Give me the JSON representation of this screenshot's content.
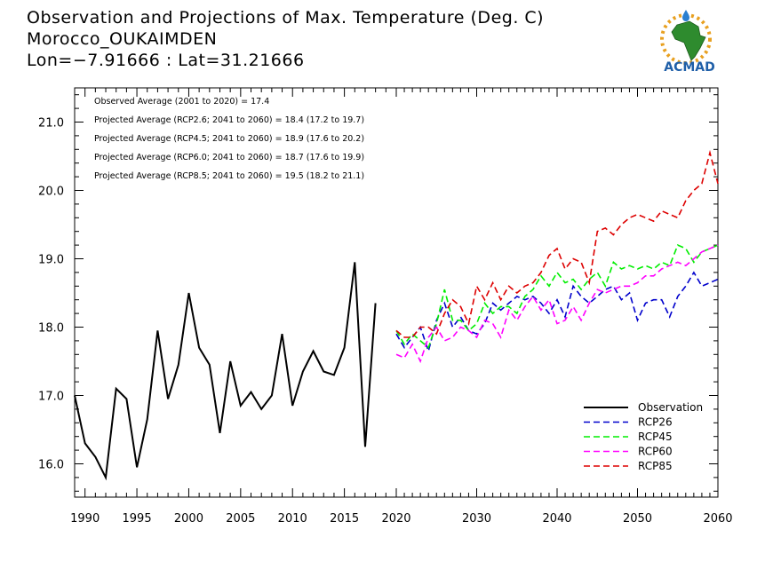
{
  "header": {
    "title_line1": "Observation and Projections of Max. Temperature (Deg. C)",
    "title_line2": "Morocco_OUKAIMDEN",
    "title_line3": "Lon=−7.91666 : Lat=31.21666"
  },
  "logo": {
    "text": "ACMAD",
    "icon": "acmad-africa-logo"
  },
  "chart_data": {
    "type": "line",
    "title": "Observation and Projections of Max. Temperature (Deg. C)",
    "xlim": [
      1989,
      2060
    ],
    "ylim": [
      15.5,
      21.5
    ],
    "x_ticks": [
      1990,
      1995,
      2000,
      2005,
      2010,
      2015,
      2020,
      2030,
      2040,
      2050,
      2060
    ],
    "y_ticks": [
      16.0,
      17.0,
      18.0,
      19.0,
      20.0,
      21.0
    ],
    "y_tick_labels": [
      "16.0",
      "17.0",
      "18.0",
      "19.0",
      "20.0",
      "21.0"
    ],
    "x_break_note": "x-axis has different spacing before and after 2020",
    "annotations": [
      "Observed Average (2001 to 2020) = 17.4",
      "Projected Average (RCP2.6; 2041 to 2060) = 18.4 (17.2 to 19.7)",
      "Projected Average (RCP4.5; 2041 to 2060) = 18.9 (17.6 to 20.2)",
      "Projected Average (RCP6.0; 2041 to 2060) = 18.7 (17.6 to 19.9)",
      "Projected Average (RCP8.5; 2041 to 2060) = 19.5 (18.2 to 21.1)"
    ],
    "legend_position": "bottom-right",
    "series": [
      {
        "name": "Observation",
        "color": "#000000",
        "dash": "solid",
        "x": [
          1989,
          1990,
          1991,
          1992,
          1993,
          1994,
          1995,
          1996,
          1997,
          1998,
          1999,
          2000,
          2001,
          2002,
          2003,
          2004,
          2005,
          2006,
          2007,
          2008,
          2009,
          2010,
          2011,
          2012,
          2013,
          2014,
          2015,
          2016,
          2017,
          2018,
          2019,
          2020
        ],
        "y": [
          17.0,
          16.3,
          16.1,
          15.8,
          17.1,
          16.95,
          15.95,
          16.65,
          17.95,
          16.95,
          17.45,
          18.5,
          17.7,
          17.45,
          16.45,
          17.5,
          16.85,
          17.05,
          16.8,
          17.0,
          17.9,
          16.85,
          17.35,
          17.65,
          17.35,
          17.3,
          17.7,
          18.95,
          16.25,
          18.35,
          null,
          null
        ]
      },
      {
        "name": "RCP26",
        "color": "#0000cc",
        "dash": "dashed",
        "x": [
          2020,
          2021,
          2022,
          2023,
          2024,
          2025,
          2026,
          2027,
          2028,
          2029,
          2030,
          2031,
          2032,
          2033,
          2034,
          2035,
          2036,
          2037,
          2038,
          2039,
          2040,
          2041,
          2042,
          2043,
          2044,
          2045,
          2046,
          2047,
          2048,
          2049,
          2050,
          2051,
          2052,
          2053,
          2054,
          2055,
          2056,
          2057,
          2058,
          2059,
          2060
        ],
        "y": [
          17.9,
          17.7,
          17.85,
          18.0,
          17.65,
          18.1,
          18.35,
          18.0,
          18.15,
          17.95,
          17.9,
          18.05,
          18.35,
          18.25,
          18.35,
          18.45,
          18.4,
          18.45,
          18.35,
          18.2,
          18.4,
          18.15,
          18.6,
          18.45,
          18.35,
          18.45,
          18.55,
          18.6,
          18.4,
          18.5,
          18.1,
          18.35,
          18.4,
          18.4,
          18.15,
          18.45,
          18.6,
          18.8,
          18.6,
          18.65,
          18.7
        ]
      },
      {
        "name": "RCP45",
        "color": "#00ee00",
        "dash": "dashed",
        "x": [
          2020,
          2021,
          2022,
          2023,
          2024,
          2025,
          2026,
          2027,
          2028,
          2029,
          2030,
          2031,
          2032,
          2033,
          2034,
          2035,
          2036,
          2037,
          2038,
          2039,
          2040,
          2041,
          2042,
          2043,
          2044,
          2045,
          2046,
          2047,
          2048,
          2049,
          2050,
          2051,
          2052,
          2053,
          2054,
          2055,
          2056,
          2057,
          2058,
          2059,
          2060
        ],
        "y": [
          17.95,
          17.75,
          17.9,
          17.8,
          17.7,
          18.05,
          18.55,
          18.1,
          18.1,
          17.95,
          18.05,
          18.35,
          18.2,
          18.3,
          18.3,
          18.2,
          18.45,
          18.55,
          18.75,
          18.6,
          18.8,
          18.65,
          18.7,
          18.55,
          18.7,
          18.8,
          18.6,
          18.95,
          18.85,
          18.9,
          18.85,
          18.9,
          18.85,
          18.95,
          18.9,
          19.2,
          19.15,
          18.95,
          19.1,
          19.15,
          19.2
        ]
      },
      {
        "name": "RCP60",
        "color": "#ff00ff",
        "dash": "dashed",
        "x": [
          2020,
          2021,
          2022,
          2023,
          2024,
          2025,
          2026,
          2027,
          2028,
          2029,
          2030,
          2031,
          2032,
          2033,
          2034,
          2035,
          2036,
          2037,
          2038,
          2039,
          2040,
          2041,
          2042,
          2043,
          2044,
          2045,
          2046,
          2047,
          2048,
          2049,
          2050,
          2051,
          2052,
          2053,
          2054,
          2055,
          2056,
          2057,
          2058,
          2059,
          2060
        ],
        "y": [
          17.6,
          17.55,
          17.75,
          17.5,
          17.85,
          18.0,
          17.8,
          17.85,
          18.0,
          17.95,
          17.85,
          18.1,
          18.05,
          17.85,
          18.25,
          18.1,
          18.3,
          18.45,
          18.25,
          18.4,
          18.05,
          18.1,
          18.3,
          18.1,
          18.35,
          18.55,
          18.5,
          18.55,
          18.6,
          18.6,
          18.65,
          18.75,
          18.75,
          18.85,
          18.9,
          18.95,
          18.9,
          19.0,
          19.1,
          19.15,
          19.2
        ]
      },
      {
        "name": "RCP85",
        "color": "#dd0000",
        "dash": "dashed",
        "x": [
          2020,
          2021,
          2022,
          2023,
          2024,
          2025,
          2026,
          2027,
          2028,
          2029,
          2030,
          2031,
          2032,
          2033,
          2034,
          2035,
          2036,
          2037,
          2038,
          2039,
          2040,
          2041,
          2042,
          2043,
          2044,
          2045,
          2046,
          2047,
          2048,
          2049,
          2050,
          2051,
          2052,
          2053,
          2054,
          2055,
          2056,
          2057,
          2058,
          2059,
          2060
        ],
        "y": [
          17.95,
          17.85,
          17.85,
          18.0,
          18.0,
          17.9,
          18.2,
          18.4,
          18.3,
          18.05,
          18.6,
          18.4,
          18.65,
          18.4,
          18.6,
          18.5,
          18.6,
          18.65,
          18.8,
          19.05,
          19.15,
          18.85,
          19.0,
          18.95,
          18.65,
          19.4,
          19.45,
          19.35,
          19.5,
          19.6,
          19.65,
          19.6,
          19.55,
          19.7,
          19.65,
          19.6,
          19.85,
          20.0,
          20.1,
          20.55,
          20.1
        ]
      }
    ]
  }
}
